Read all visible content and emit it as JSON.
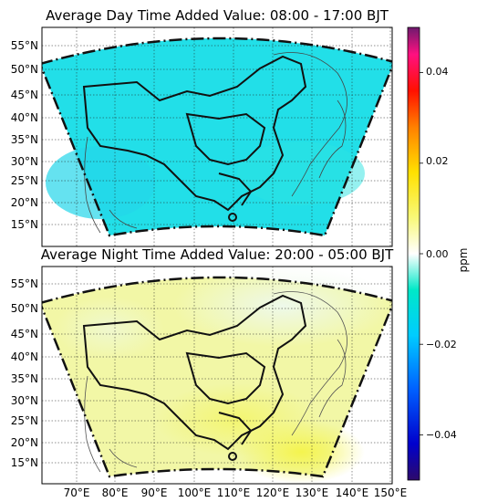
{
  "chart_data": [
    {
      "type": "heatmap",
      "title": "Average Day Time Added Value: 08:00 - 17:00 BJT",
      "ylabel": "",
      "xlabel": "",
      "y_ticks": [
        "15°N",
        "20°N",
        "25°N",
        "30°N",
        "35°N",
        "40°N",
        "45°N",
        "50°N",
        "55°N"
      ],
      "x_ticks": [],
      "field_summary": "nearly uniform added value of about -0.01 ppm across the domain",
      "field_value_ppm": -0.01,
      "colors": {
        "field": "#22dfe8",
        "field_shade": "#24d6ea"
      }
    },
    {
      "type": "heatmap",
      "title": "Average Night Time Added Value: 20:00 - 05:00 BJT",
      "ylabel": "",
      "xlabel": "",
      "y_ticks": [
        "15°N",
        "20°N",
        "25°N",
        "30°N",
        "35°N",
        "40°N",
        "45°N",
        "50°N",
        "55°N"
      ],
      "x_ticks": [
        "70°E",
        "80°E",
        "90°E",
        "100°E",
        "110°E",
        "120°E",
        "130°E",
        "140°E",
        "150°E"
      ],
      "field_summary": "small positive values (about 0.005 ppm) over central and southern China, strongest (about 0.01 ppm) near 25°N 120-130°E, near zero in the north",
      "field_value_ppm": 0.005,
      "colors": {
        "field": "#f2f7a6",
        "max": "#f4f44e",
        "min": "#eef9ea"
      }
    }
  ],
  "colorbar": {
    "label": "ppm",
    "range": [
      -0.05,
      0.05
    ],
    "ticks": [
      "0.04",
      "0.02",
      "0.00",
      "−0.02",
      "−0.04"
    ],
    "tick_values": [
      0.04,
      0.02,
      0.0,
      -0.02,
      -0.04
    ],
    "colormap": [
      "#2d0a6b",
      "#0000cc",
      "#0060ff",
      "#00ccff",
      "#00e8c8",
      "#ffffff",
      "#f8f878",
      "#ffe000",
      "#ff8000",
      "#ff1000",
      "#ff1080",
      "#cc2090",
      "#6e1a6e"
    ]
  }
}
